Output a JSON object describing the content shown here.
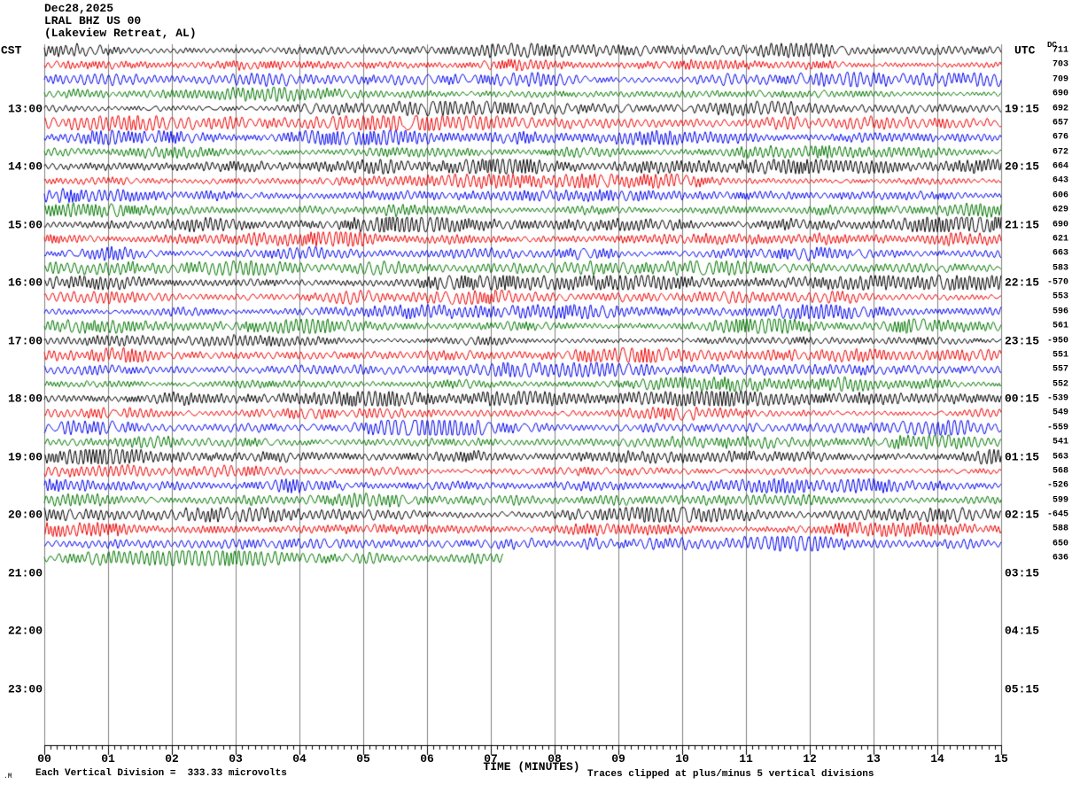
{
  "header": {
    "date": "Dec28,2025",
    "station": "LRAL BHZ US 00",
    "location": "(Lakeview Retreat, AL)"
  },
  "axis": {
    "left_header": "CST",
    "right_header": "UTC",
    "dc_header": "DC",
    "xlabel": "TIME (MINUTES)",
    "x_tick_labels": [
      "00",
      "01",
      "02",
      "03",
      "04",
      "05",
      "06",
      "07",
      "08",
      "09",
      "10",
      "11",
      "12",
      "13",
      "14",
      "15"
    ],
    "hour_labels": [
      {
        "row": 4,
        "cst": "13:00",
        "utc": "19:15"
      },
      {
        "row": 8,
        "cst": "14:00",
        "utc": "20:15"
      },
      {
        "row": 12,
        "cst": "15:00",
        "utc": "21:15"
      },
      {
        "row": 16,
        "cst": "16:00",
        "utc": "22:15"
      },
      {
        "row": 20,
        "cst": "17:00",
        "utc": "23:15"
      },
      {
        "row": 24,
        "cst": "18:00",
        "utc": "00:15"
      },
      {
        "row": 28,
        "cst": "19:00",
        "utc": "01:15"
      },
      {
        "row": 32,
        "cst": "20:00",
        "utc": "02:15"
      },
      {
        "row": 36,
        "cst": "21:00",
        "utc": "03:15"
      },
      {
        "row": 40,
        "cst": "22:00",
        "utc": "04:15"
      },
      {
        "row": 44,
        "cst": "23:00",
        "utc": "05:15"
      }
    ]
  },
  "footer": {
    "scale_note": "Each Vertical Division =  333.33 microvolts",
    "clip_note": "Traces clipped at plus/minus 5 vertical divisions",
    "corner_mark": ".M"
  },
  "chart_data": {
    "type": "line",
    "subtype": "seismogram-helicorder",
    "title": "Dec28,2025 LRAL BHZ US 00 (Lakeview Retreat, AL)",
    "xlabel": "TIME (MINUTES)",
    "x_range_minutes": [
      0,
      15
    ],
    "major_tick_every_min": 1,
    "minor_tick_every_min": 0.1,
    "row_duration_minutes": 15,
    "rows_per_hour": 4,
    "first_row_start_cst": "12:00",
    "last_row_start_cst": "20:45",
    "colors_cycle": [
      "#000000",
      "#ee0000",
      "#0000ee",
      "#007700"
    ],
    "grid_color": "#7f7f7f",
    "microvolts_per_division": 333.33,
    "clip_divisions": 5,
    "dc_values": [
      711,
      703,
      709,
      690,
      692,
      657,
      676,
      672,
      664,
      643,
      606,
      629,
      690,
      621,
      663,
      583,
      -570,
      553,
      596,
      561,
      -950,
      551,
      557,
      552,
      -539,
      549,
      -559,
      541,
      563,
      568,
      -526,
      599,
      -645,
      588,
      650,
      636
    ],
    "partial_last_row": {
      "index": 35,
      "fraction": 0.48
    }
  }
}
